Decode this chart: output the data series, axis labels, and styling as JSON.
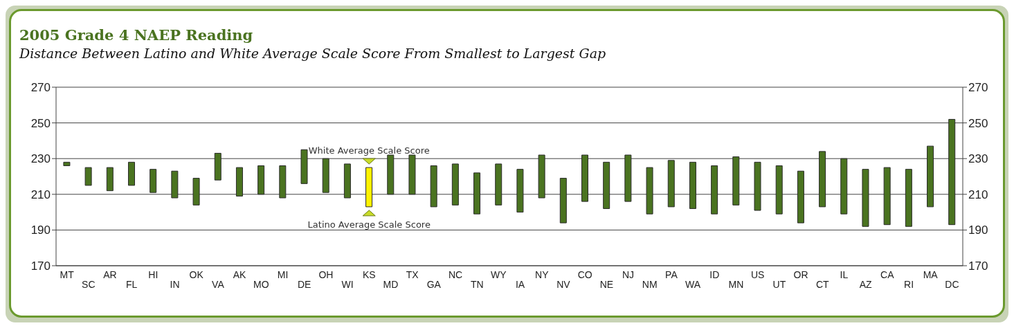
{
  "chart_data": {
    "type": "bar",
    "title": "2005 Grade 4 NAEP Reading",
    "subtitle": "Distance Between Latino and White Average Scale Score From Smallest to Largest Gap",
    "categories": [
      "MT",
      "SC",
      "AR",
      "FL",
      "HI",
      "IN",
      "OK",
      "VA",
      "AK",
      "MO",
      "MI",
      "DE",
      "OH",
      "WI",
      "KS",
      "MD",
      "TX",
      "GA",
      "NC",
      "TN",
      "WY",
      "IA",
      "NY",
      "NV",
      "CO",
      "NE",
      "NJ",
      "NM",
      "PA",
      "WA",
      "ID",
      "MN",
      "US",
      "UT",
      "OR",
      "CT",
      "IL",
      "AZ",
      "CA",
      "RI",
      "MA",
      "DC"
    ],
    "base": [
      226,
      215,
      212,
      215,
      211,
      208,
      204,
      218,
      209,
      210,
      208,
      216,
      211,
      208,
      203,
      210,
      210,
      203,
      204,
      199,
      204,
      200,
      208,
      194,
      206,
      202,
      206,
      199,
      203,
      202,
      199,
      204,
      201,
      199,
      194,
      203,
      199,
      192,
      193,
      192,
      203,
      193
    ],
    "values": [
      2,
      10,
      13,
      13,
      13,
      15,
      15,
      15,
      16,
      16,
      18,
      19,
      19,
      19,
      22,
      22,
      22,
      23,
      23,
      23,
      23,
      24,
      24,
      25,
      26,
      26,
      26,
      26,
      26,
      26,
      27,
      27,
      27,
      27,
      29,
      31,
      31,
      32,
      32,
      32,
      34,
      59
    ],
    "colors": [
      "#4a7320",
      "#4a7320",
      "#4a7320",
      "#4a7320",
      "#4a7320",
      "#4a7320",
      "#4a7320",
      "#4a7320",
      "#4a7320",
      "#4a7320",
      "#4a7320",
      "#4a7320",
      "#4a7320",
      "#4a7320",
      "#fff200",
      "#4a7320",
      "#4a7320",
      "#4a7320",
      "#4a7320",
      "#4a7320",
      "#4a7320",
      "#4a7320",
      "#4a7320",
      "#4a7320",
      "#4a7320",
      "#4a7320",
      "#4a7320",
      "#4a7320",
      "#4a7320",
      "#4a7320",
      "#4a7320",
      "#4a7320",
      "#4a7320",
      "#4a7320",
      "#4a7320",
      "#4a7320",
      "#4a7320",
      "#4a7320",
      "#4a7320",
      "#4a7320",
      "#4a7320",
      "#4a7320"
    ],
    "ylim": [
      170,
      270
    ],
    "yticks": [
      170,
      190,
      210,
      230,
      250,
      270
    ],
    "y2lim": [
      170,
      270
    ],
    "y2ticks": [
      170,
      190,
      210,
      230,
      250,
      270
    ],
    "grid": "y",
    "annotations": [
      {
        "text": "White Average Scale Score",
        "x": "KS",
        "y": 225
      },
      {
        "text": "Latino Average Scale Score",
        "x": "KS",
        "y": 203
      }
    ]
  }
}
